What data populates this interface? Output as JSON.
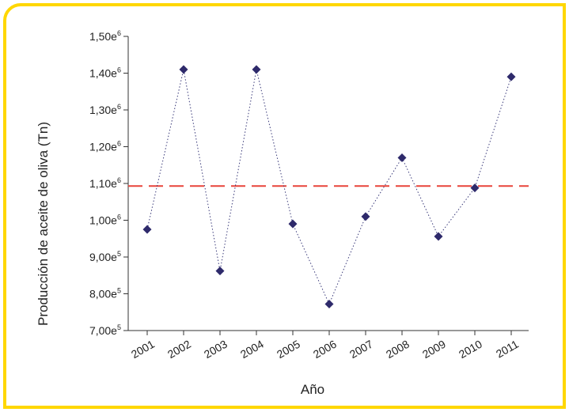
{
  "chart_data": {
    "type": "scatter",
    "xlabel": "Año",
    "ylabel": "Producción de aceite de oliva (Tn)",
    "x": [
      "2001",
      "2002",
      "2003",
      "2004",
      "2005",
      "2006",
      "2007",
      "2008",
      "2009",
      "2010",
      "2011"
    ],
    "values": [
      975000,
      1410000,
      862000,
      1410000,
      990000,
      772000,
      1010000,
      1170000,
      956000,
      1088000,
      1390000
    ],
    "ylim": [
      700000,
      1500000
    ],
    "yticks": [
      {
        "value": 700000,
        "mantissa": "7,00e",
        "exp": "5"
      },
      {
        "value": 800000,
        "mantissa": "8,00e",
        "exp": "5"
      },
      {
        "value": 900000,
        "mantissa": "9,00e",
        "exp": "5"
      },
      {
        "value": 1000000,
        "mantissa": "1,00e",
        "exp": "6"
      },
      {
        "value": 1100000,
        "mantissa": "1,10e",
        "exp": "6"
      },
      {
        "value": 1200000,
        "mantissa": "1,20e",
        "exp": "6"
      },
      {
        "value": 1300000,
        "mantissa": "1,30e",
        "exp": "6"
      },
      {
        "value": 1400000,
        "mantissa": "1,40e",
        "exp": "6"
      },
      {
        "value": 1500000,
        "mantissa": "1,50e",
        "exp": "6"
      }
    ],
    "reference_line": {
      "value": 1093000,
      "style": "dashed",
      "color": "#e8443a"
    },
    "connector_style": "dotted",
    "grid": false
  },
  "colors": {
    "frame": "#ffd700",
    "marker": "#2e2a6b",
    "connector": "#3a3a7a",
    "reference": "#e8443a"
  }
}
